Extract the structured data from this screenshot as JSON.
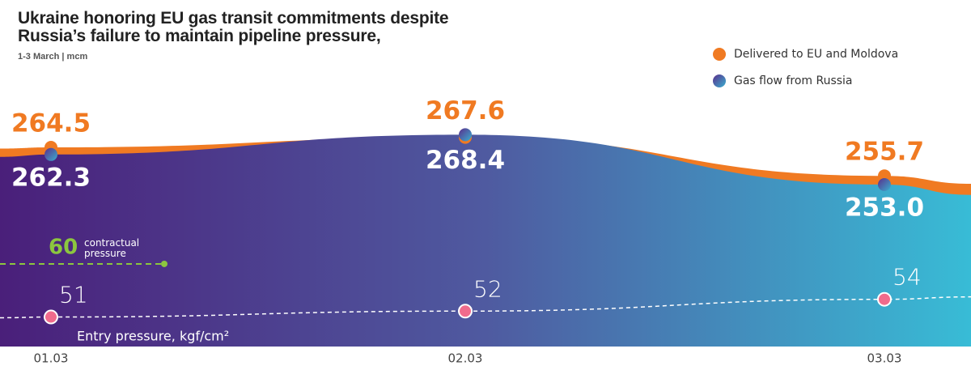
{
  "chart_data": {
    "type": "area",
    "title": "Ukraine honoring EU gas transit commitments despite Russia’s failure to maintain pipeline pressure,",
    "subtitle": "1-3 March | mcm",
    "categories": [
      "01.03",
      "02.03",
      "03.03"
    ],
    "ylim": [
      203,
      285
    ],
    "series": [
      {
        "name": "Delivered to EU and Moldova",
        "color": "#f07a22",
        "values": [
          264.5,
          267.6,
          255.7
        ]
      },
      {
        "name": "Gas flow from Russia",
        "color": "#4f5aa0",
        "values": [
          262.3,
          268.4,
          253.0
        ],
        "value_labels": [
          "262.3",
          "268.4",
          "253.0"
        ]
      },
      {
        "name": "Entry pressure, kgf/cm²",
        "color": "#f06b8c",
        "values": [
          51,
          52,
          54
        ],
        "axis": "y2"
      }
    ],
    "y2lim": [
      46,
      91
    ],
    "contractual_pressure": {
      "value": 60,
      "label": "contractual pressure",
      "color": "#8cc63f"
    },
    "legend": "top-right"
  }
}
